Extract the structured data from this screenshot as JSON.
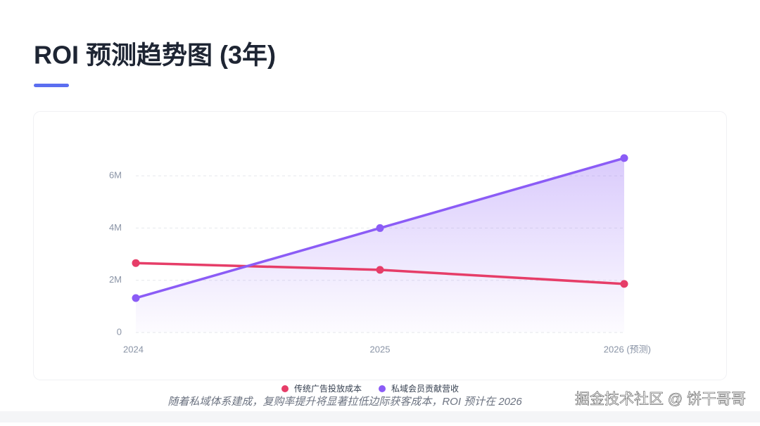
{
  "chart_data": {
    "type": "line",
    "title": "ROI 预测趋势图 (3年)",
    "categories": [
      "2024",
      "2025",
      "2026 (预测)"
    ],
    "series": [
      {
        "name": "传统广告投放成本",
        "color": "#e63d68",
        "values": [
          2660000,
          2400000,
          1860000
        ]
      },
      {
        "name": "私域会员贡献营收",
        "color": "#8b5cf6",
        "values": [
          1320000,
          4000000,
          6680000
        ],
        "area": true
      }
    ],
    "ylim": [
      0,
      7000000
    ],
    "yticks": [
      0,
      {
        "value": 2000000,
        "label": "2M"
      },
      {
        "value": 4000000,
        "label": "4M"
      },
      {
        "value": 6000000,
        "label": "6M"
      }
    ],
    "grid": true,
    "legend": "bottom",
    "annotation": "随着私域体系建成，复购率提升将显著拉低边际获客成本，ROI 预计在 2026"
  },
  "watermark": "掘金技术社区 @ 饼干哥哥"
}
